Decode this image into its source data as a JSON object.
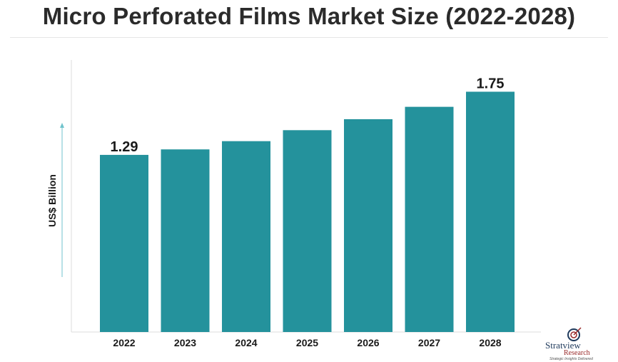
{
  "chart_data": {
    "type": "bar",
    "title": "Micro Perforated Films Market Size (2022-2028)",
    "ylabel": "US$ Billion",
    "xlabel": "",
    "categories": [
      "2022",
      "2023",
      "2024",
      "2025",
      "2026",
      "2027",
      "2028"
    ],
    "values": [
      1.29,
      1.33,
      1.39,
      1.47,
      1.55,
      1.64,
      1.75
    ],
    "data_labels": [
      "1.29",
      "",
      "",
      "",
      "",
      "",
      "1.75"
    ],
    "ylim": [
      0,
      1.95
    ],
    "grid": false,
    "legend": "none",
    "colors": {
      "bar": "#24929c",
      "axis": "#dcdcdc",
      "arrow": "#6fc3cc",
      "text": "#1a1a1a"
    }
  },
  "logo": {
    "name_part1": "Stratview",
    "name_part2": "Research",
    "tagline": "Strategic Insights Delivered"
  }
}
